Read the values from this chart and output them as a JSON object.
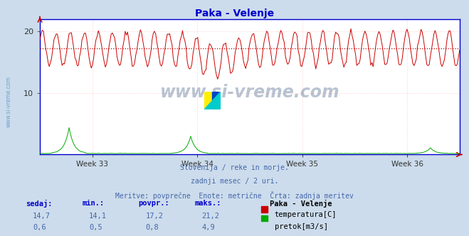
{
  "title": "Paka - Velenje",
  "title_color": "#0000cc",
  "bg_color": "#ccdcec",
  "plot_bg_color": "#ffffff",
  "grid_color": "#ffbbbb",
  "x_labels": [
    "Week 33",
    "Week 34",
    "Week 35",
    "Week 36"
  ],
  "y_min": 0,
  "y_max": 22,
  "y_ticks": [
    10,
    20
  ],
  "temp_color": "#cc0000",
  "flow_color": "#00aa00",
  "avg_line_color": "#cc0000",
  "avg_line_value": 17.2,
  "watermark": "www.si-vreme.com",
  "watermark_color": "#1a3a6a",
  "axis_color": "#0000cc",
  "subtitle1": "Slovenija / reke in morje.",
  "subtitle2": "zadnji mesec / 2 uri.",
  "subtitle3": "Meritve: povprečne  Enote: metrične  Črta: zadnja meritev",
  "subtitle_color": "#4466aa",
  "label_color": "#0000cc",
  "legend_title": "Paka - Velenje",
  "stats_headers": [
    "sedaj:",
    "min.:",
    "povpr.:",
    "maks.:"
  ],
  "temp_stats": [
    "14,7",
    "14,1",
    "17,2",
    "21,2"
  ],
  "flow_stats": [
    "0,6",
    "0,5",
    "0,8",
    "4,9"
  ],
  "temp_label": "temperatura[C]",
  "flow_label": "pretok[m3/s]",
  "n_points": 360,
  "temp_base": 17.2,
  "temp_amplitude": 2.8,
  "flow_base": 0.15,
  "logo_yellow": "#ffee00",
  "logo_blue": "#0044cc",
  "logo_cyan": "#00cccc"
}
